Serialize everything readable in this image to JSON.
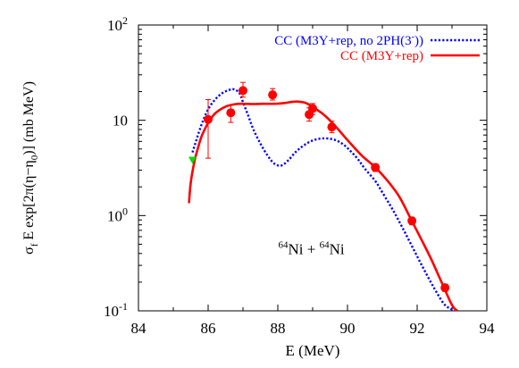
{
  "chart_data": {
    "type": "line",
    "title": "",
    "xlabel": "E (MeV)",
    "ylabel": "σ_f E exp[2π(η−η_0)] (mb MeV)",
    "ylabel_parts": {
      "sigma": "σ",
      "f": "f",
      "body": " E exp[2π(η−η",
      "zero": "0",
      "tail": ")] (mb MeV)"
    },
    "xlim": [
      84,
      94
    ],
    "ylim": [
      0.1,
      100
    ],
    "yscale": "log",
    "x_ticks": [
      "84",
      "86",
      "88",
      "90",
      "92",
      "94"
    ],
    "x_tick_values": [
      84,
      86,
      88,
      90,
      92,
      94
    ],
    "y_ticks": [
      {
        "value": 100,
        "base": "10",
        "exp": "2"
      },
      {
        "value": 10,
        "base": "10",
        "exp": ""
      },
      {
        "value": 1,
        "base": "10",
        "exp": "0"
      },
      {
        "value": 0.1,
        "base": "10",
        "exp": "-1"
      }
    ],
    "legend_position": "top-right",
    "annotation": {
      "text_parts": [
        "64",
        "Ni + ",
        "64",
        "Ni"
      ],
      "x": 89.5,
      "y": 0.45
    },
    "series": [
      {
        "name": "CC (M3Y+rep, no 2PH(3⁻))",
        "legend_parts": [
          "CC (M3Y+rep, no 2PH(3",
          "-",
          "))"
        ],
        "style": "dotted",
        "color": "#0000ff",
        "x": [
          85.55,
          85.8,
          86.0,
          86.2,
          86.4,
          86.6,
          86.75,
          86.9,
          87.0,
          87.15,
          87.3,
          87.5,
          87.7,
          87.9,
          88.1,
          88.3,
          88.5,
          88.7,
          88.9,
          89.1,
          89.3,
          89.5,
          89.7,
          89.9,
          90.1,
          90.3,
          90.5,
          90.8,
          91.0,
          91.3,
          91.6,
          91.9,
          92.2,
          92.5,
          92.8,
          93.1
        ],
        "values": [
          4.6,
          8.8,
          13.0,
          16.5,
          19.2,
          20.8,
          21.1,
          19.2,
          15.5,
          11.2,
          8.0,
          5.7,
          4.3,
          3.5,
          3.35,
          3.8,
          4.6,
          5.3,
          5.9,
          6.3,
          6.45,
          6.4,
          6.1,
          5.5,
          4.7,
          3.9,
          3.1,
          2.3,
          1.75,
          1.15,
          0.72,
          0.44,
          0.27,
          0.17,
          0.115,
          0.1
        ]
      },
      {
        "name": "CC (M3Y+rep)",
        "legend_parts": [
          "CC (M3Y+rep)"
        ],
        "style": "solid",
        "color": "#ff0000",
        "x": [
          85.45,
          85.5,
          85.6,
          85.7,
          85.8,
          85.9,
          86.0,
          86.2,
          86.5,
          86.8,
          87.0,
          87.3,
          87.6,
          87.9,
          88.2,
          88.4,
          88.6,
          88.8,
          89.0,
          89.3,
          89.6,
          90.0,
          90.4,
          90.8,
          91.2,
          91.5,
          91.8,
          92.1,
          92.4,
          92.7,
          93.0,
          93.15
        ],
        "values": [
          1.35,
          2.2,
          3.6,
          5.0,
          6.6,
          8.0,
          9.4,
          11.8,
          13.9,
          14.8,
          14.9,
          14.8,
          14.9,
          14.9,
          15.2,
          15.6,
          15.7,
          15.2,
          13.8,
          11.6,
          9.1,
          6.2,
          4.3,
          3.2,
          2.2,
          1.55,
          0.95,
          0.58,
          0.35,
          0.2,
          0.115,
          0.1
        ]
      },
      {
        "name": "experimental data",
        "style": "points",
        "color": "#ff0000",
        "x": [
          86.0,
          86.65,
          87.0,
          87.85,
          88.9,
          89.0,
          89.55,
          90.8,
          91.85,
          92.8
        ],
        "values": [
          10.2,
          12.0,
          20.5,
          18.5,
          11.5,
          13.3,
          8.5,
          3.2,
          0.88,
          0.175
        ],
        "err_low": [
          4.0,
          9.5,
          17.5,
          16.3,
          9.8,
          11.5,
          7.4,
          2.9,
          0.8,
          0.16
        ],
        "err_high": [
          16.5,
          14.5,
          25.0,
          21.5,
          13.5,
          15.0,
          9.8,
          3.5,
          0.96,
          0.19
        ]
      },
      {
        "name": "extra point",
        "style": "triangle",
        "color": "#00dd00",
        "x": [
          85.55
        ],
        "values": [
          3.8
        ]
      }
    ]
  }
}
